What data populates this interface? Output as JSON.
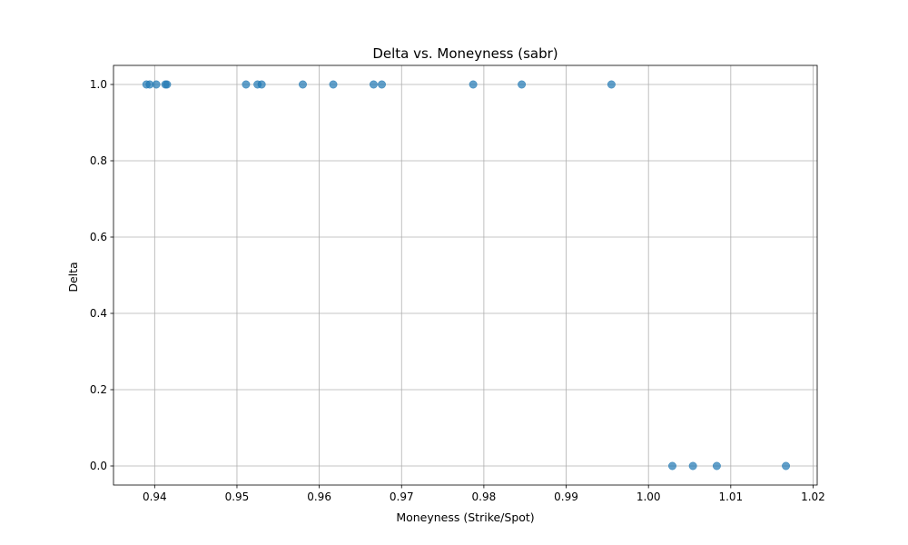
{
  "chart_data": {
    "type": "scatter",
    "title": "Delta vs. Moneyness (sabr)",
    "xlabel": "Moneyness (Strike/Spot)",
    "ylabel": "Delta",
    "xlim": [
      0.935,
      1.0205
    ],
    "ylim": [
      -0.05,
      1.05
    ],
    "xticks": [
      0.94,
      0.95,
      0.96,
      0.97,
      0.98,
      0.99,
      1.0,
      1.01,
      1.02
    ],
    "xtick_labels": [
      "0.94",
      "0.95",
      "0.96",
      "0.97",
      "0.98",
      "0.99",
      "1.00",
      "1.01",
      "1.02"
    ],
    "yticks": [
      0.0,
      0.2,
      0.4,
      0.6,
      0.8,
      1.0
    ],
    "ytick_labels": [
      "0.0",
      "0.2",
      "0.4",
      "0.6",
      "0.8",
      "1.0"
    ],
    "grid": true,
    "marker_color": "#1f77b4",
    "points": [
      {
        "x": 0.939,
        "y": 1.0
      },
      {
        "x": 0.9394,
        "y": 1.0
      },
      {
        "x": 0.9402,
        "y": 1.0
      },
      {
        "x": 0.9413,
        "y": 1.0
      },
      {
        "x": 0.9415,
        "y": 1.0
      },
      {
        "x": 0.9511,
        "y": 1.0
      },
      {
        "x": 0.9525,
        "y": 1.0
      },
      {
        "x": 0.953,
        "y": 1.0
      },
      {
        "x": 0.958,
        "y": 1.0
      },
      {
        "x": 0.9617,
        "y": 1.0
      },
      {
        "x": 0.9666,
        "y": 1.0
      },
      {
        "x": 0.9676,
        "y": 1.0
      },
      {
        "x": 0.9787,
        "y": 1.0
      },
      {
        "x": 0.9846,
        "y": 1.0
      },
      {
        "x": 0.9955,
        "y": 1.0
      },
      {
        "x": 1.0029,
        "y": 0.0
      },
      {
        "x": 1.0054,
        "y": 0.0
      },
      {
        "x": 1.0083,
        "y": 0.0
      },
      {
        "x": 1.0167,
        "y": 0.0
      }
    ]
  }
}
